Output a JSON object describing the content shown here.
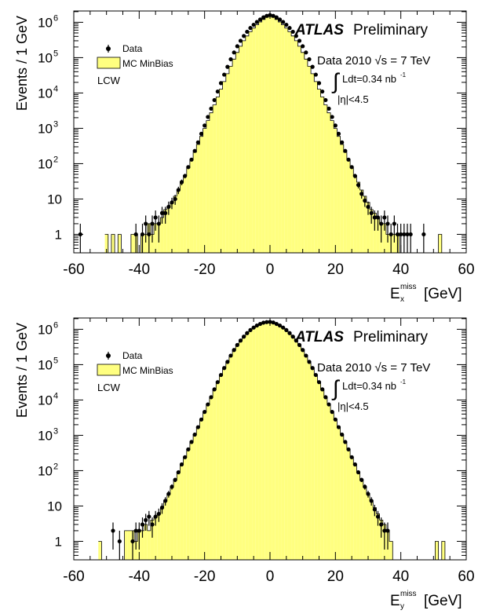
{
  "chart_data": [
    {
      "type": "histogram",
      "ylabel": "Events / 1 GeV",
      "xlabel": "E",
      "xlabel_sup": "miss",
      "xlabel_sub": "x",
      "xlabel_unit": "[GeV]",
      "xlim": [
        -60,
        60
      ],
      "ylim": [
        0.3,
        1000000
      ],
      "yscale": "log",
      "x_ticks": [
        "-60",
        "-40",
        "-20",
        "0",
        "20",
        "40",
        "60"
      ],
      "y_tick_labels": [
        {
          "v": 1,
          "base": "1",
          "exp": ""
        },
        {
          "v": 10,
          "base": "10",
          "exp": ""
        },
        {
          "v": 100,
          "base": "10",
          "exp": "2"
        },
        {
          "v": 1000,
          "base": "10",
          "exp": "3"
        },
        {
          "v": 10000,
          "base": "10",
          "exp": "4"
        },
        {
          "v": 100000,
          "base": "10",
          "exp": "5"
        },
        {
          "v": 1000000,
          "base": "10",
          "exp": "6"
        }
      ],
      "atlas_label": "ATLAS",
      "atlas_sub": "Preliminary",
      "legend": [
        {
          "kind": "marker",
          "label": "Data"
        },
        {
          "kind": "fill",
          "label": "MC MinBias",
          "color": "#ffff80"
        }
      ],
      "extra_label": "LCW",
      "info_line1": "Data 2010  √s = 7 TeV",
      "info_line2_pre": "∫",
      "info_line2": "Ldt=0.34 nb",
      "info_line2_exp": "-1",
      "info_line3": "|η|<4.5",
      "fill_color": "#ffff80",
      "series": [
        {
          "name": "Data",
          "x": [
            -58,
            -41,
            -39,
            -38,
            -37,
            -36,
            -35,
            -34,
            -33,
            -32,
            -31,
            -30,
            -29,
            -28,
            -27,
            -26,
            -25,
            -24,
            -23,
            -22,
            -21,
            -20,
            -19,
            -18,
            -17,
            -16,
            -15,
            -14,
            -13,
            -12,
            -11,
            -10,
            -9,
            -8,
            -7,
            -6,
            -5,
            -4,
            -3,
            -2,
            -1,
            0,
            1,
            2,
            3,
            4,
            5,
            6,
            7,
            8,
            9,
            10,
            11,
            12,
            13,
            14,
            15,
            16,
            17,
            18,
            19,
            20,
            21,
            22,
            23,
            24,
            25,
            26,
            27,
            28,
            29,
            30,
            31,
            32,
            33,
            34,
            35,
            36,
            37,
            38,
            39,
            40,
            41,
            42,
            43,
            47
          ],
          "y": [
            1,
            1,
            1,
            2,
            1,
            2,
            3,
            2,
            4,
            4,
            6,
            8,
            10,
            18,
            30,
            45,
            80,
            130,
            230,
            400,
            700,
            1200,
            2100,
            3600,
            6300,
            11000,
            19000,
            33000,
            55000,
            90000,
            140000,
            210000,
            300000,
            410000,
            540000,
            690000,
            850000,
            1020000,
            1200000,
            1380000,
            1520000,
            1600000,
            1520000,
            1380000,
            1200000,
            1020000,
            850000,
            690000,
            540000,
            410000,
            300000,
            210000,
            140000,
            90000,
            55000,
            33000,
            19000,
            11000,
            6300,
            3600,
            2100,
            1200,
            700,
            400,
            230,
            130,
            80,
            45,
            25,
            14,
            9,
            6,
            4,
            3,
            3,
            2,
            3,
            2,
            1,
            2,
            1,
            1,
            1,
            1,
            1,
            1
          ]
        },
        {
          "name": "MC MinBias",
          "x": [
            -50,
            -49,
            -48,
            -47,
            -46,
            -45,
            -44,
            -43,
            -42,
            -41,
            -40,
            -39,
            -38,
            -37,
            -36,
            -35,
            -34,
            -33,
            -32,
            -31,
            -30,
            -29,
            -28,
            -27,
            -26,
            -25,
            -24,
            -23,
            -22,
            -21,
            -20,
            -19,
            -18,
            -17,
            -16,
            -15,
            -14,
            -13,
            -12,
            -11,
            -10,
            -9,
            -8,
            -7,
            -6,
            -5,
            -4,
            -3,
            -2,
            -1,
            0,
            1,
            2,
            3,
            4,
            5,
            6,
            7,
            8,
            9,
            10,
            11,
            12,
            13,
            14,
            15,
            16,
            17,
            18,
            19,
            20,
            21,
            22,
            23,
            24,
            25,
            26,
            27,
            28,
            29,
            30,
            31,
            32,
            33,
            34,
            35,
            36,
            37,
            38,
            39,
            40,
            41,
            42,
            43,
            44,
            45,
            46,
            47,
            48,
            49,
            50,
            51,
            52,
            53
          ],
          "y": [
            1,
            0,
            1,
            0,
            1,
            0,
            0,
            0,
            1,
            1,
            0,
            1,
            1,
            2,
            1,
            2,
            2,
            3,
            5,
            6,
            8,
            12,
            18,
            30,
            46,
            76,
            125,
            210,
            350,
            590,
            990,
            1650,
            2750,
            4600,
            7700,
            12800,
            21000,
            35000,
            57000,
            91000,
            140000,
            210000,
            300000,
            410000,
            540000,
            690000,
            850000,
            1020000,
            1200000,
            1380000,
            1560000,
            1380000,
            1200000,
            1020000,
            850000,
            690000,
            540000,
            410000,
            300000,
            210000,
            140000,
            91000,
            57000,
            35000,
            21000,
            12800,
            7700,
            4600,
            2750,
            1650,
            990,
            590,
            350,
            210,
            125,
            76,
            46,
            30,
            18,
            12,
            8,
            5,
            4,
            3,
            2,
            2,
            1,
            1,
            1,
            1,
            0,
            0,
            0,
            0,
            0,
            0,
            0,
            0,
            0,
            0,
            0,
            0,
            1,
            0
          ]
        }
      ]
    },
    {
      "type": "histogram",
      "ylabel": "Events / 1 GeV",
      "xlabel": "E",
      "xlabel_sup": "miss",
      "xlabel_sub": "y",
      "xlabel_unit": "[GeV]",
      "xlim": [
        -60,
        60
      ],
      "ylim": [
        0.3,
        1000000
      ],
      "yscale": "log",
      "x_ticks": [
        "-60",
        "-40",
        "-20",
        "0",
        "20",
        "40",
        "60"
      ],
      "y_tick_labels": [
        {
          "v": 1,
          "base": "1",
          "exp": ""
        },
        {
          "v": 10,
          "base": "10",
          "exp": ""
        },
        {
          "v": 100,
          "base": "10",
          "exp": "2"
        },
        {
          "v": 1000,
          "base": "10",
          "exp": "3"
        },
        {
          "v": 10000,
          "base": "10",
          "exp": "4"
        },
        {
          "v": 100000,
          "base": "10",
          "exp": "5"
        },
        {
          "v": 1000000,
          "base": "10",
          "exp": "6"
        }
      ],
      "atlas_label": "ATLAS",
      "atlas_sub": "Preliminary",
      "legend": [
        {
          "kind": "marker",
          "label": "Data"
        },
        {
          "kind": "fill",
          "label": "MC MinBias",
          "color": "#ffff80"
        }
      ],
      "extra_label": "LCW",
      "info_line1": "Data 2010  √s = 7 TeV",
      "info_line2_pre": "∫",
      "info_line2": "Ldt=0.34 nb",
      "info_line2_exp": "-1",
      "info_line3": "|η|<4.5",
      "fill_color": "#ffff80",
      "series": [
        {
          "name": "Data",
          "x": [
            -48,
            -46,
            -42,
            -41,
            -40,
            -39,
            -38,
            -37,
            -36,
            -35,
            -34,
            -33,
            -32,
            -31,
            -30,
            -29,
            -28,
            -27,
            -26,
            -25,
            -24,
            -23,
            -22,
            -21,
            -20,
            -19,
            -18,
            -17,
            -16,
            -15,
            -14,
            -13,
            -12,
            -11,
            -10,
            -9,
            -8,
            -7,
            -6,
            -5,
            -4,
            -3,
            -2,
            -1,
            0,
            1,
            2,
            3,
            4,
            5,
            6,
            7,
            8,
            9,
            10,
            11,
            12,
            13,
            14,
            15,
            16,
            17,
            18,
            19,
            20,
            21,
            22,
            23,
            24,
            25,
            26,
            27,
            28,
            29,
            30,
            31,
            32,
            33,
            34,
            35,
            36
          ],
          "y": [
            2,
            1,
            1,
            2,
            2,
            3,
            4,
            5,
            3,
            5,
            6,
            9,
            14,
            22,
            35,
            55,
            90,
            150,
            240,
            400,
            650,
            1050,
            1700,
            2800,
            4600,
            7500,
            12000,
            20000,
            32000,
            51000,
            80000,
            120000,
            180000,
            260000,
            360000,
            480000,
            620000,
            780000,
            950000,
            1120000,
            1280000,
            1420000,
            1540000,
            1600000,
            1620000,
            1560000,
            1420000,
            1280000,
            1120000,
            950000,
            780000,
            620000,
            480000,
            360000,
            260000,
            180000,
            120000,
            80000,
            51000,
            32000,
            20000,
            12000,
            7500,
            4600,
            2800,
            1700,
            1050,
            650,
            400,
            240,
            150,
            90,
            55,
            35,
            22,
            14,
            8,
            5,
            3,
            2,
            2
          ]
        },
        {
          "name": "MC MinBias",
          "x": [
            -52,
            -51,
            -50,
            -49,
            -48,
            -47,
            -46,
            -45,
            -44,
            -43,
            -42,
            -41,
            -40,
            -39,
            -38,
            -37,
            -36,
            -35,
            -34,
            -33,
            -32,
            -31,
            -30,
            -29,
            -28,
            -27,
            -26,
            -25,
            -24,
            -23,
            -22,
            -21,
            -20,
            -19,
            -18,
            -17,
            -16,
            -15,
            -14,
            -13,
            -12,
            -11,
            -10,
            -9,
            -8,
            -7,
            -6,
            -5,
            -4,
            -3,
            -2,
            -1,
            0,
            1,
            2,
            3,
            4,
            5,
            6,
            7,
            8,
            9,
            10,
            11,
            12,
            13,
            14,
            15,
            16,
            17,
            18,
            19,
            20,
            21,
            22,
            23,
            24,
            25,
            26,
            27,
            28,
            29,
            30,
            31,
            32,
            33,
            34,
            35,
            36,
            37,
            38,
            39,
            40,
            41,
            42,
            43,
            44,
            45,
            46,
            47,
            48,
            49,
            50,
            51,
            52,
            53,
            54
          ],
          "y": [
            1,
            0,
            0,
            0,
            0,
            0,
            0,
            0,
            2,
            2,
            2,
            1,
            2,
            2,
            3,
            2,
            4,
            5,
            6,
            9,
            14,
            22,
            35,
            55,
            90,
            150,
            240,
            400,
            650,
            1050,
            1700,
            2800,
            4600,
            7500,
            12000,
            20000,
            32000,
            51000,
            80000,
            120000,
            180000,
            260000,
            360000,
            480000,
            620000,
            780000,
            950000,
            1120000,
            1280000,
            1420000,
            1540000,
            1600000,
            1620000,
            1560000,
            1420000,
            1280000,
            1120000,
            950000,
            780000,
            620000,
            480000,
            360000,
            260000,
            180000,
            120000,
            80000,
            51000,
            32000,
            20000,
            12000,
            7500,
            4600,
            2800,
            1700,
            1050,
            650,
            400,
            240,
            150,
            90,
            55,
            35,
            22,
            14,
            9,
            6,
            4,
            3,
            2,
            1,
            0,
            0,
            0,
            0,
            0,
            0,
            0,
            0,
            0,
            0,
            0,
            0,
            0,
            1,
            0,
            1,
            0
          ]
        }
      ]
    }
  ]
}
